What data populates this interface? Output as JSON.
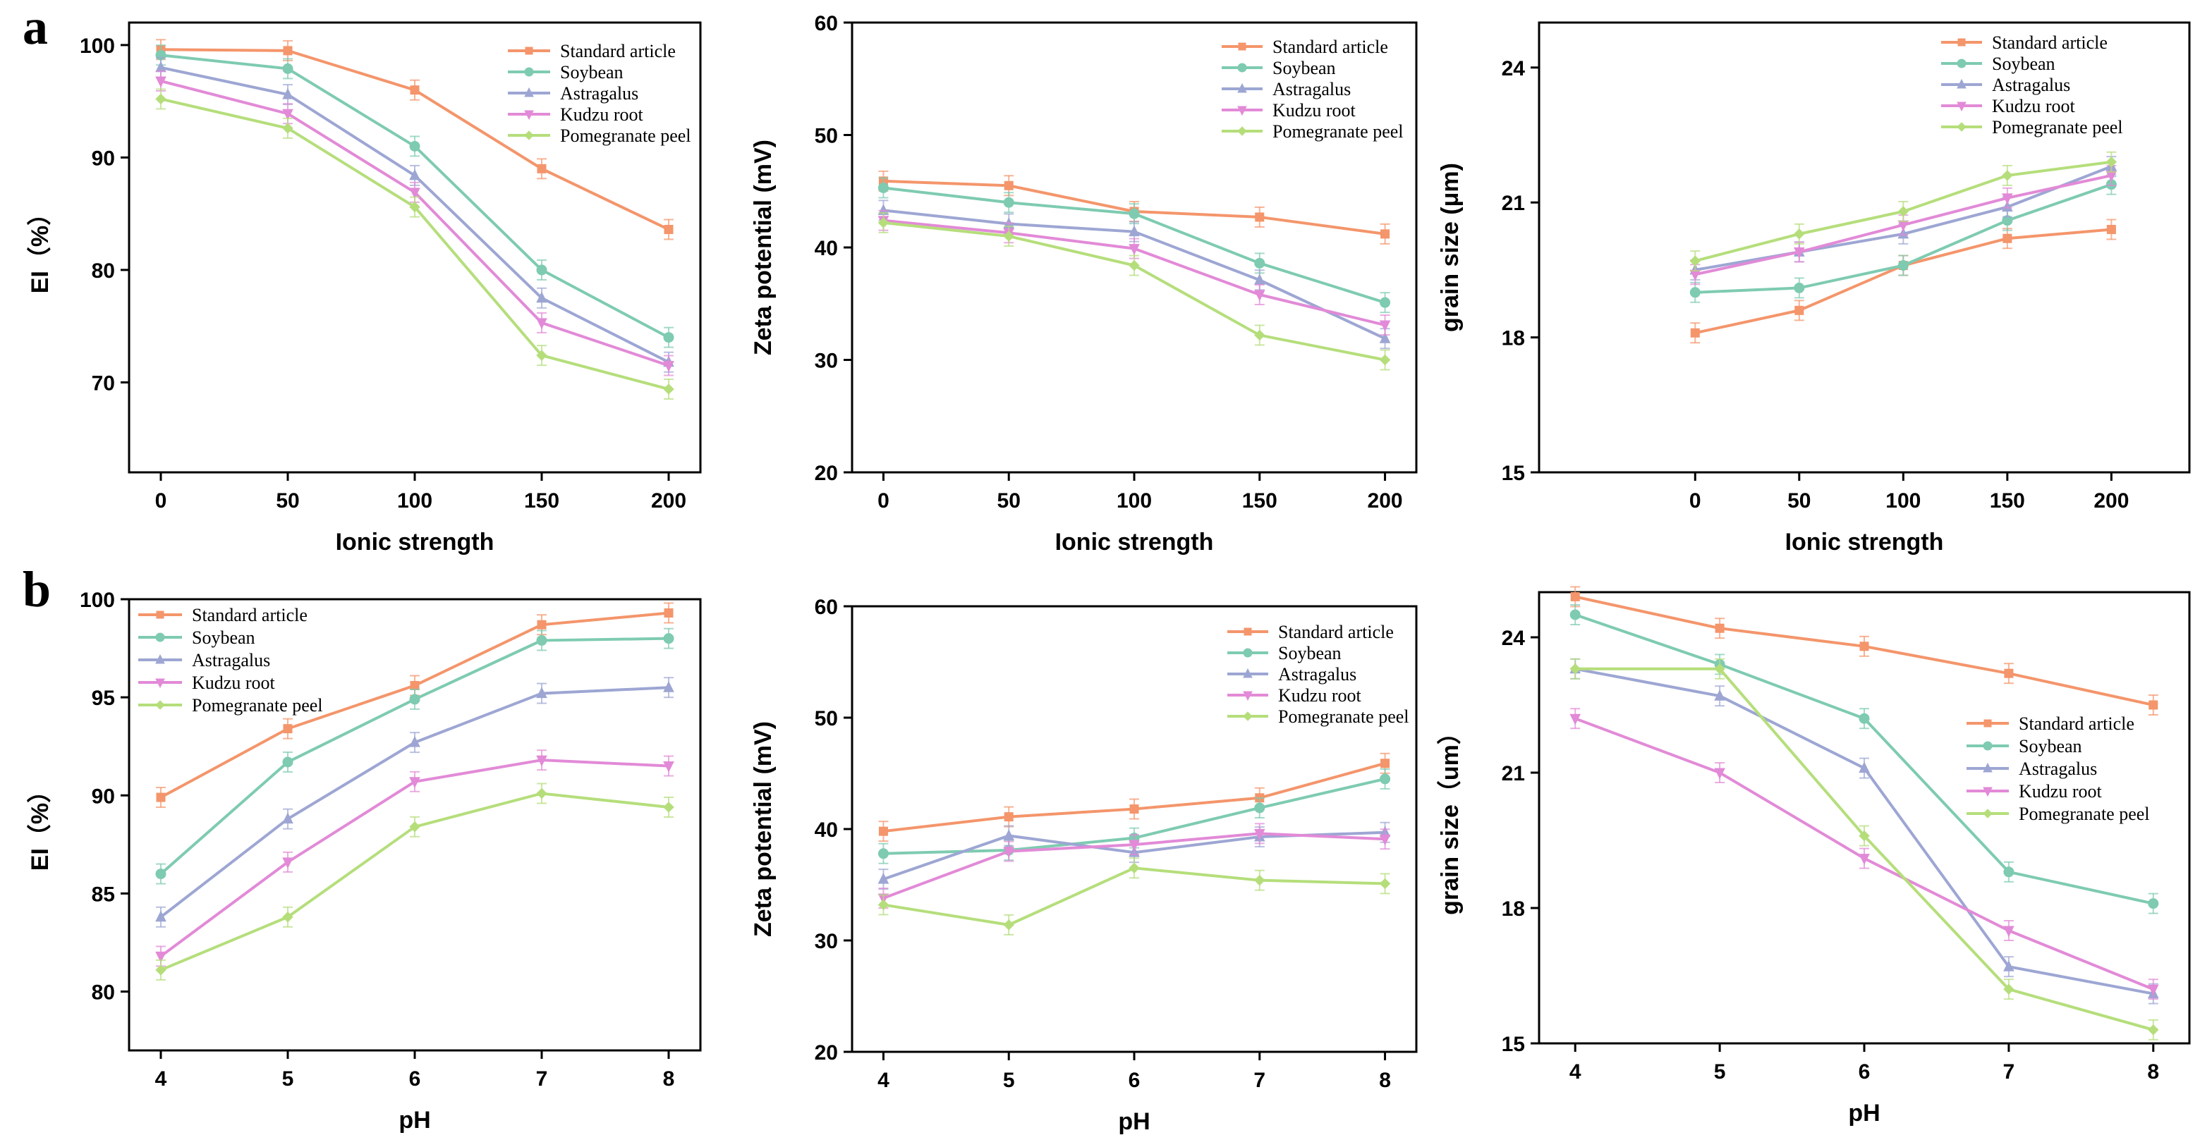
{
  "figure": {
    "panel_labels": [
      "a",
      "b"
    ],
    "colors": {
      "Standard article": "#F4956B",
      "Soybean": "#7ECBB1",
      "Astragalus": "#9DA6D3",
      "Kudzu root": "#E28AD7",
      "Pomegranate peel": "#B5DE7B"
    }
  },
  "chart_data": [
    {
      "type": "line",
      "row": "a",
      "title": "",
      "xlabel": "Ionic strength",
      "ylabel": "EI（%）",
      "categories": [
        "0",
        "50",
        "100",
        "150",
        "200"
      ],
      "ylim": [
        62,
        102
      ],
      "yticks": [
        70,
        80,
        90,
        100
      ],
      "legend_position": "top-right",
      "series": [
        {
          "name": "Standard article",
          "values": [
            99.6,
            99.5,
            96.0,
            89.0,
            83.6
          ]
        },
        {
          "name": "Soybean",
          "values": [
            99.1,
            97.9,
            91.0,
            80.0,
            74.0
          ]
        },
        {
          "name": "Astragalus",
          "values": [
            98.0,
            95.6,
            88.4,
            77.5,
            71.8
          ]
        },
        {
          "name": "Kudzu root",
          "values": [
            96.8,
            93.9,
            86.9,
            75.3,
            71.5
          ]
        },
        {
          "name": "Pomegranate peel",
          "values": [
            95.2,
            92.6,
            85.6,
            72.4,
            69.4
          ]
        }
      ]
    },
    {
      "type": "line",
      "row": "a",
      "title": "",
      "xlabel": "Ionic strength",
      "ylabel": "Zeta potential (mV)",
      "categories": [
        "0",
        "50",
        "100",
        "150",
        "200"
      ],
      "ylim": [
        20,
        60
      ],
      "yticks": [
        20,
        30,
        40,
        50,
        60
      ],
      "legend_position": "top-right",
      "series": [
        {
          "name": "Standard article",
          "values": [
            45.9,
            45.5,
            43.2,
            42.7,
            41.2
          ]
        },
        {
          "name": "Soybean",
          "values": [
            45.3,
            44.0,
            43.0,
            38.6,
            35.1
          ]
        },
        {
          "name": "Astragalus",
          "values": [
            43.3,
            42.1,
            41.4,
            37.1,
            31.9
          ]
        },
        {
          "name": "Kudzu root",
          "values": [
            42.4,
            41.3,
            39.9,
            35.8,
            33.1
          ]
        },
        {
          "name": "Pomegranate peel",
          "values": [
            42.2,
            41.0,
            38.4,
            32.2,
            30.0
          ]
        }
      ]
    },
    {
      "type": "line",
      "row": "a",
      "title": "",
      "xlabel": "Ionic strength",
      "ylabel": "grain size (μm)",
      "categories": [
        "0",
        "50",
        "100",
        "150",
        "200"
      ],
      "xlim_categories": [
        -1.5,
        4.75
      ],
      "ylim": [
        15,
        25
      ],
      "yticks": [
        15,
        18,
        21,
        24
      ],
      "legend_position": "top-right",
      "series": [
        {
          "name": "Standard article",
          "values": [
            18.1,
            18.6,
            19.6,
            20.2,
            20.4
          ]
        },
        {
          "name": "Soybean",
          "values": [
            19.0,
            19.1,
            19.6,
            20.6,
            21.4
          ]
        },
        {
          "name": "Astragalus",
          "values": [
            19.5,
            19.9,
            20.3,
            20.9,
            21.8
          ]
        },
        {
          "name": "Kudzu root",
          "values": [
            19.4,
            19.9,
            20.5,
            21.1,
            21.6
          ]
        },
        {
          "name": "Pomegranate peel",
          "values": [
            19.7,
            20.3,
            20.8,
            21.6,
            21.9
          ]
        }
      ]
    },
    {
      "type": "line",
      "row": "b",
      "title": "",
      "xlabel": "pH",
      "ylabel": "EI（%）",
      "categories": [
        "4",
        "5",
        "6",
        "7",
        "8"
      ],
      "ylim": [
        77,
        100
      ],
      "yticks": [
        80,
        85,
        90,
        95,
        100
      ],
      "legend_position": "top-left",
      "series": [
        {
          "name": "Standard article",
          "values": [
            89.9,
            93.4,
            95.6,
            98.7,
            99.3
          ]
        },
        {
          "name": "Soybean",
          "values": [
            86.0,
            91.7,
            94.9,
            97.9,
            98.0
          ]
        },
        {
          "name": "Astragalus",
          "values": [
            83.8,
            88.8,
            92.7,
            95.2,
            95.5
          ]
        },
        {
          "name": "Kudzu root",
          "values": [
            81.8,
            86.6,
            90.7,
            91.8,
            91.5
          ]
        },
        {
          "name": "Pomegranate peel",
          "values": [
            81.1,
            83.8,
            88.4,
            90.1,
            89.4
          ]
        }
      ]
    },
    {
      "type": "line",
      "row": "b",
      "title": "",
      "xlabel": "pH",
      "ylabel": "Zeta potential (mV)",
      "categories": [
        "4",
        "5",
        "6",
        "7",
        "8"
      ],
      "ylim": [
        20,
        60
      ],
      "yticks": [
        20,
        30,
        40,
        50,
        60
      ],
      "legend_position": "top-right",
      "series": [
        {
          "name": "Standard article",
          "values": [
            39.8,
            41.1,
            41.8,
            42.8,
            45.9
          ]
        },
        {
          "name": "Soybean",
          "values": [
            37.8,
            38.1,
            39.2,
            41.9,
            44.5
          ]
        },
        {
          "name": "Astragalus",
          "values": [
            35.5,
            39.4,
            37.9,
            39.3,
            39.7
          ]
        },
        {
          "name": "Kudzu root",
          "values": [
            33.8,
            38.0,
            38.6,
            39.6,
            39.1
          ]
        },
        {
          "name": "Pomegranate peel",
          "values": [
            33.2,
            31.4,
            36.5,
            35.4,
            35.1
          ]
        }
      ]
    },
    {
      "type": "line",
      "row": "b",
      "title": "",
      "xlabel": "pH",
      "ylabel": "grain size（um）",
      "categories": [
        "4",
        "5",
        "6",
        "7",
        "8"
      ],
      "ylim": [
        15,
        25
      ],
      "yticks": [
        15,
        18,
        21,
        24
      ],
      "legend_position": "right",
      "series": [
        {
          "name": "Standard article",
          "values": [
            24.9,
            24.2,
            23.8,
            23.2,
            22.5
          ]
        },
        {
          "name": "Soybean",
          "values": [
            24.5,
            23.4,
            22.2,
            18.8,
            18.1
          ]
        },
        {
          "name": "Astragalus",
          "values": [
            23.3,
            22.7,
            21.1,
            16.7,
            16.1
          ]
        },
        {
          "name": "Kudzu root",
          "values": [
            22.2,
            21.0,
            19.1,
            17.5,
            16.2
          ]
        },
        {
          "name": "Pomegranate peel",
          "values": [
            23.3,
            23.3,
            19.6,
            16.2,
            15.3
          ]
        }
      ]
    }
  ]
}
